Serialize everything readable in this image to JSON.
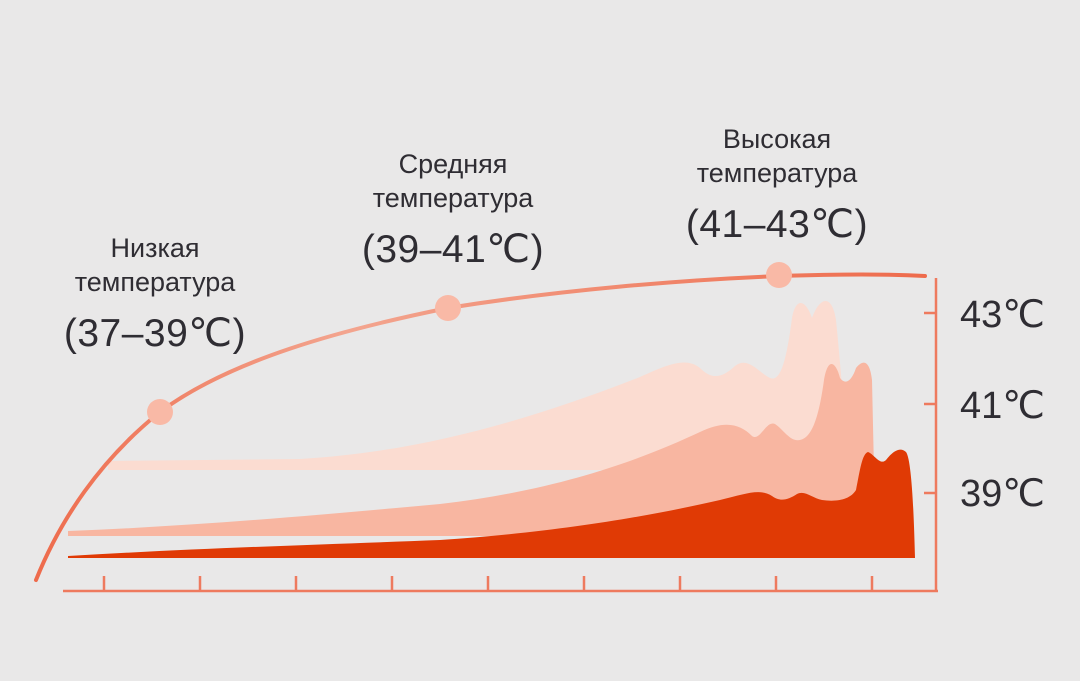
{
  "zones": [
    {
      "name": "Низкая\nтемпература",
      "range": "(37–39℃)"
    },
    {
      "name": "Средняя\nтемпература",
      "range": "(39–41℃)"
    },
    {
      "name": "Высокая\nтемпература",
      "range": "(41–43℃)"
    }
  ],
  "axis": {
    "y_labels": [
      "43℃",
      "41℃",
      "39℃"
    ],
    "x_tick_count": 9
  },
  "colors": {
    "background": "#e9e8e8",
    "curve": "#ee7a5e",
    "marker": "#f9b9a6",
    "axis": "#ee7a5e",
    "band_high": "#fbdcd1",
    "band_medium": "#f8b6a1",
    "band_low": "#e03a05"
  }
}
